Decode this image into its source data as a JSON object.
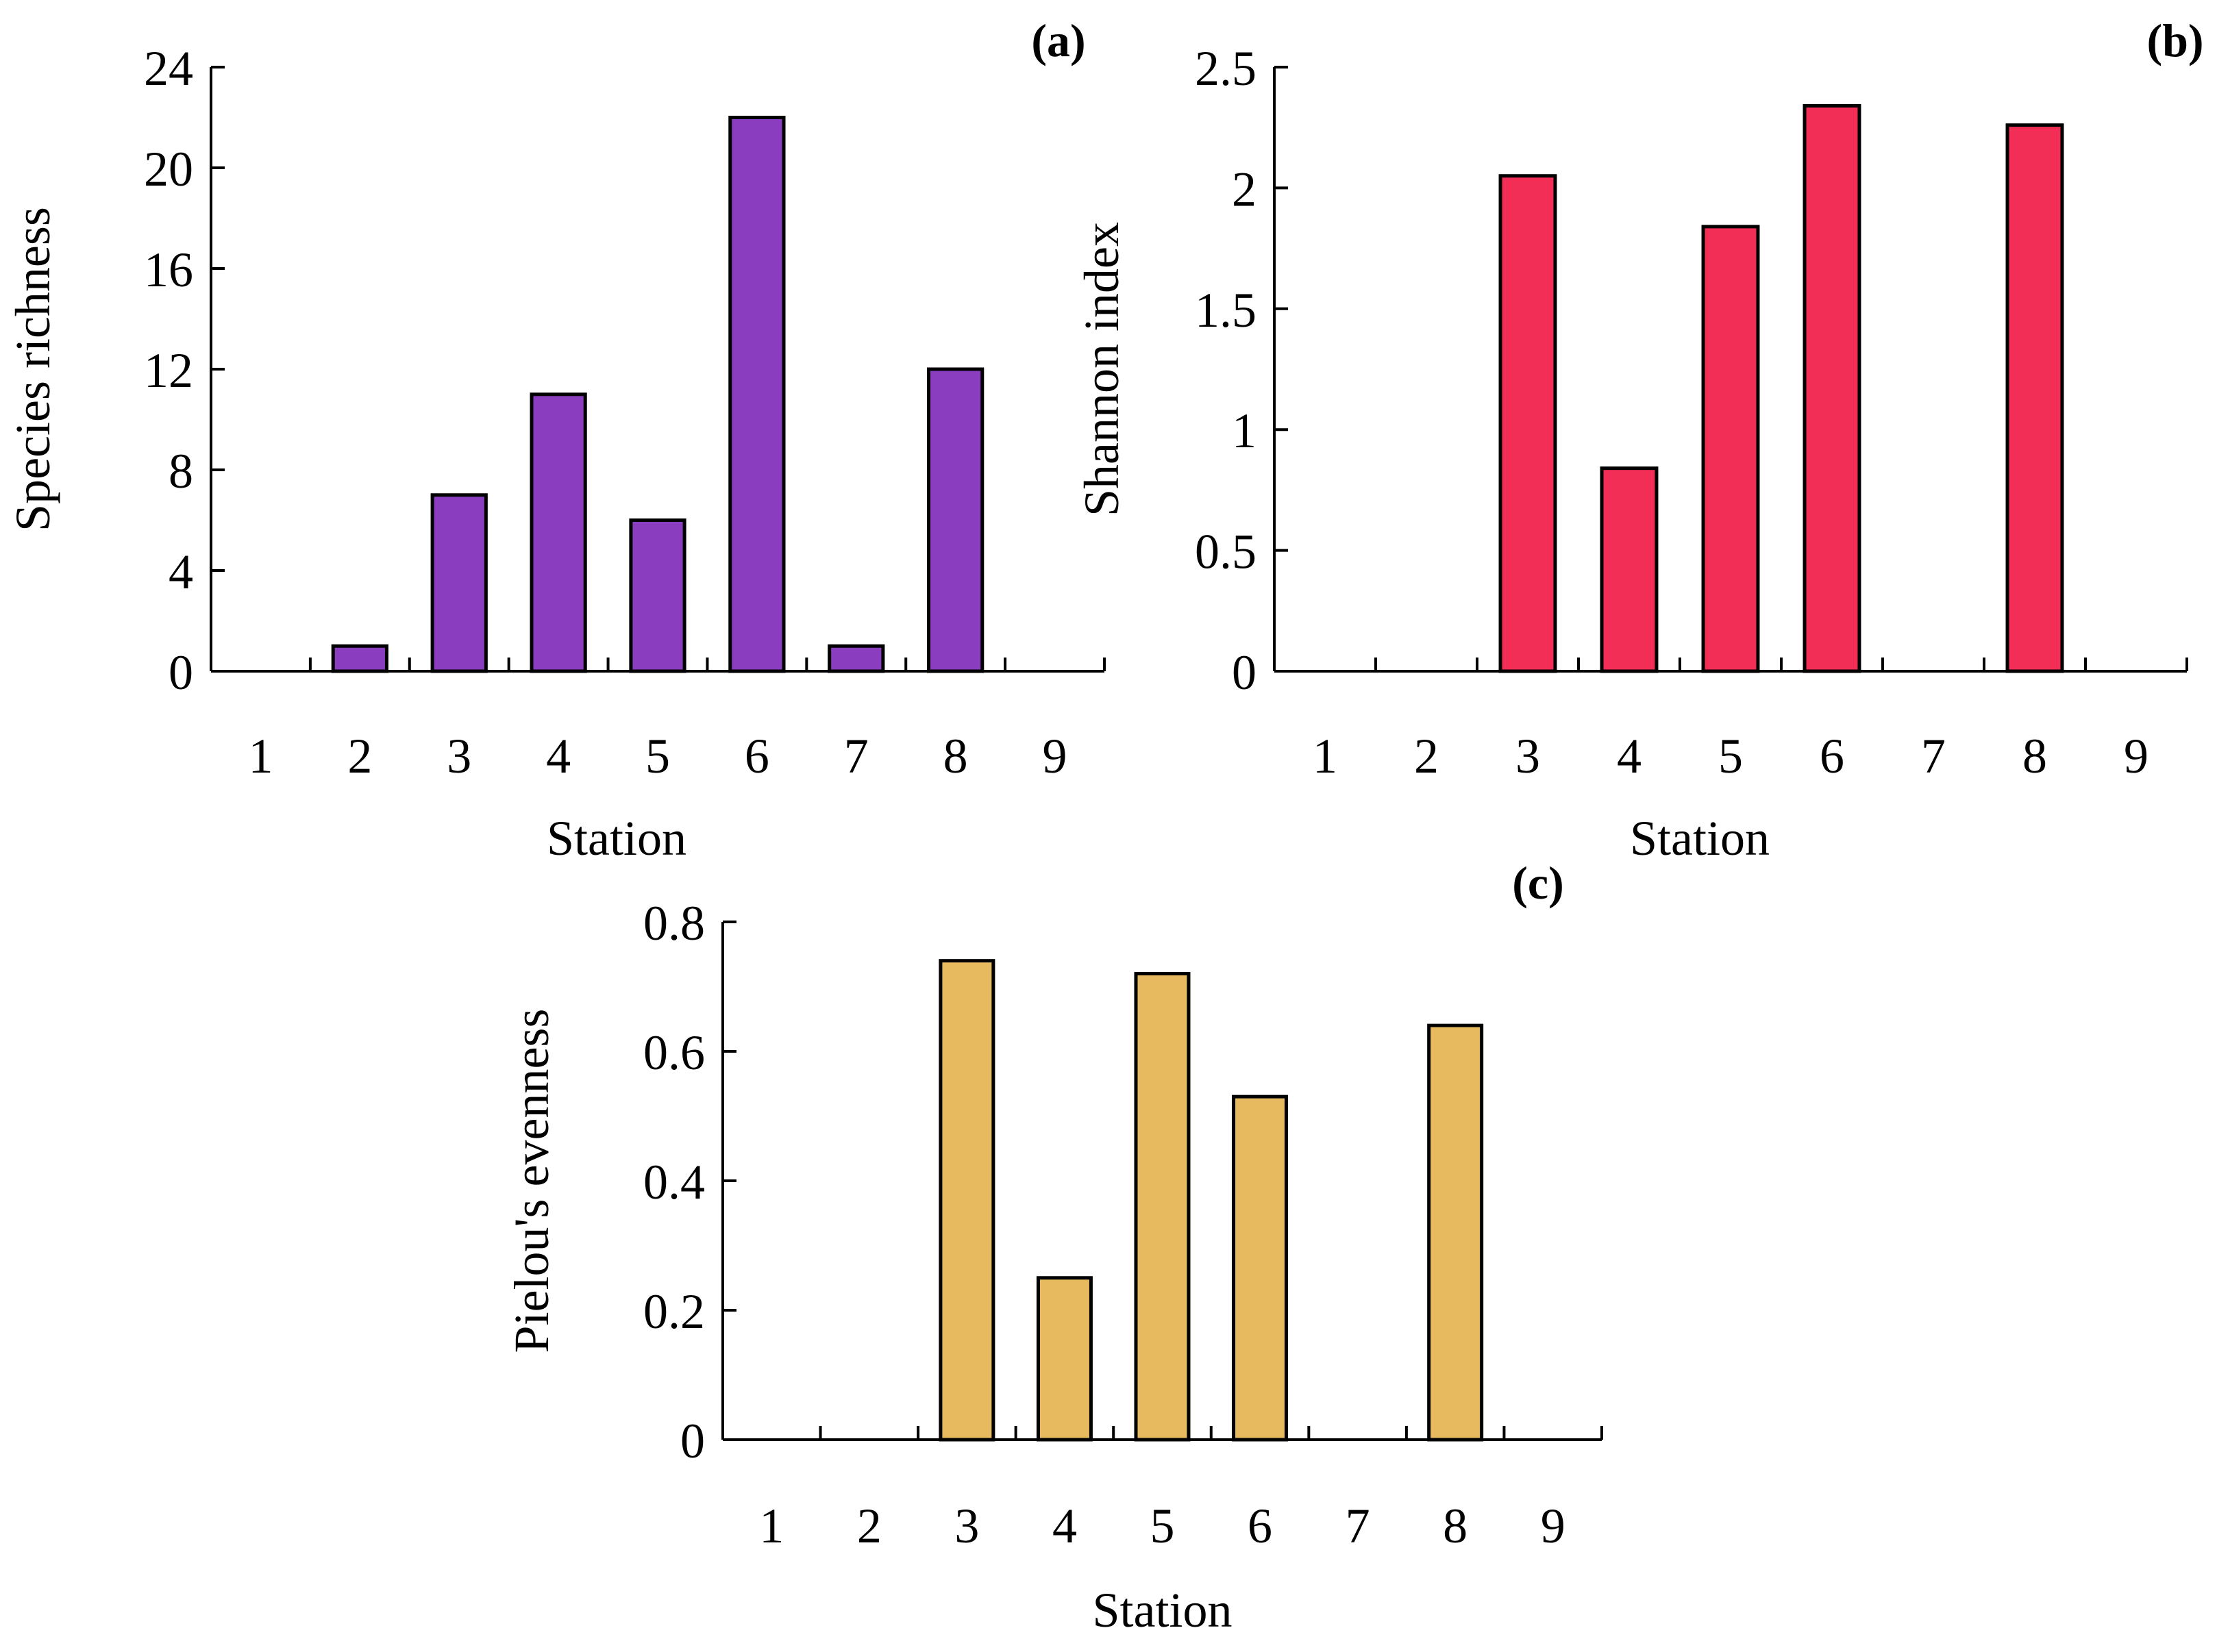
{
  "chart_data": [
    {
      "type": "bar",
      "panel_label": "(a)",
      "categories": [
        "1",
        "2",
        "3",
        "4",
        "5",
        "6",
        "7",
        "8",
        "9"
      ],
      "values": [
        0,
        1,
        7,
        11,
        6,
        22,
        1,
        12,
        0
      ],
      "xlabel": "Station",
      "ylabel": "Species richness",
      "ylim": [
        0,
        24
      ],
      "yticks": [
        "0",
        "4",
        "8",
        "12",
        "16",
        "20",
        "24"
      ],
      "color": "#8B3DBF",
      "grid": false,
      "legend": "none"
    },
    {
      "type": "bar",
      "panel_label": "(b)",
      "categories": [
        "1",
        "2",
        "3",
        "4",
        "5",
        "6",
        "7",
        "8",
        "9"
      ],
      "values": [
        0,
        0,
        2.05,
        0.84,
        1.84,
        2.34,
        0,
        2.26,
        0
      ],
      "xlabel": "Station",
      "ylabel": "Shannon index",
      "ylim": [
        0,
        2.5
      ],
      "yticks": [
        "0",
        "0.5",
        "1",
        "1.5",
        "2",
        "2.5"
      ],
      "color": "#F22D56",
      "grid": false,
      "legend": "none"
    },
    {
      "type": "bar",
      "panel_label": "(c)",
      "categories": [
        "1",
        "2",
        "3",
        "4",
        "5",
        "6",
        "7",
        "8",
        "9"
      ],
      "values": [
        0,
        0,
        0.74,
        0.25,
        0.72,
        0.53,
        0,
        0.64,
        0
      ],
      "xlabel": "Station",
      "ylabel": "Pielou's evenness",
      "ylim": [
        0,
        0.8
      ],
      "yticks": [
        "0",
        "0.2",
        "0.4",
        "0.6",
        "0.8"
      ],
      "color": "#E8BA60",
      "grid": false,
      "legend": "none"
    }
  ]
}
